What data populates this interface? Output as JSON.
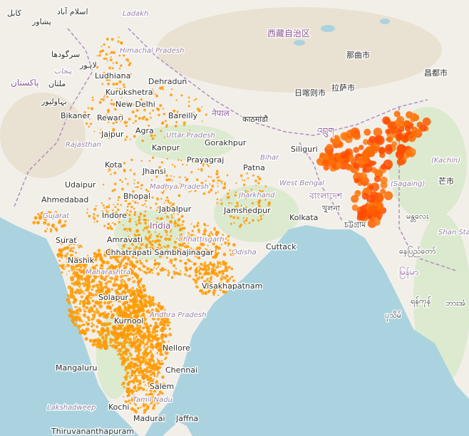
{
  "places": [
    "کابل",
    "اسلام آباد",
    "پشاور",
    "Ladakh",
    "سرگودھا",
    "لاہور",
    "پنجاب",
    "ملتان",
    "پاکستان",
    "بہاولپور",
    "Himachal Pradesh",
    "Ludhiana",
    "Dehradun",
    "Kurukshetra",
    "New Delhi",
    "Bikaner",
    "Rewari",
    "Bareilly",
    "नेपाल",
    "Jaipur",
    "Agra",
    "Uttar Pradesh",
    "काठमांडौ",
    "Gorakhpur",
    "Rajasthan",
    "Kanpur",
    "Bihar",
    "Siliguri",
    "Kota",
    "Jhansi",
    "Prayagraj",
    "Patna",
    "Udaipur",
    "Madhya Pradesh",
    "Jharkhand",
    "West Bengal",
    "Ahmedabad",
    "Bhopal",
    "Jabalpur",
    "Jamshedpur",
    "Kolkata",
    "Indore",
    "India",
    "Gujarat",
    "Chhattisgarh",
    "Surat",
    "Amravati",
    "Odisha",
    "Cuttack",
    "Nashik",
    "Chhatrapati Sambhajinagar",
    "Maharashtra",
    "Visakhapatnam",
    "Solapur",
    "Andhra Pradesh",
    "Kurnool",
    "Nellore",
    "Mangaluru",
    "Chennai",
    "Salem",
    "Kochi",
    "Tamil Nadu",
    "Madurai",
    "Jaffna",
    "Lakshadweep",
    "Thiruvananthapuram",
    "西藏自治区",
    "那曲市",
    "昌都市",
    "日喀则市",
    "拉萨市",
    "বাংলাদেশ",
    "খুলনা",
    "চট্টগ্রাম",
    "(Kachin)",
    "(Sagaing)",
    "Shan State",
    "芒市",
    "မန္တလေး",
    "နေပြည်တော်",
    "မြန်မာ",
    "ရန်ကုန်",
    "ပုသိမ်",
    "ဘားအံ",
    "འབྲུག"
  ]
}
